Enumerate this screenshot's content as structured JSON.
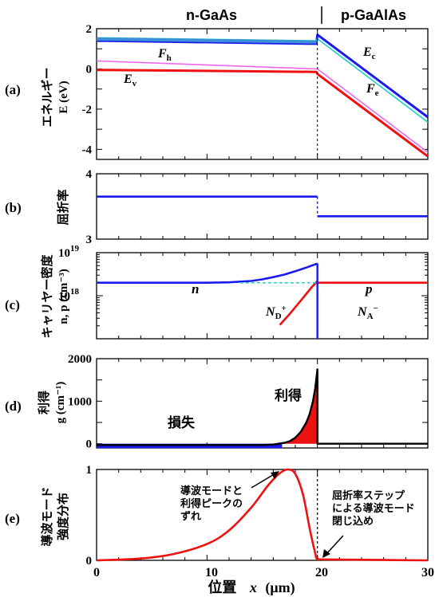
{
  "top_labels": {
    "left": "n-GaAs",
    "right": "p-GaAlAs"
  },
  "x_axis": {
    "label_text": "位置",
    "label_var": "x",
    "label_unit": "(μm)",
    "ticks": [
      "0",
      "10",
      "20",
      "30"
    ]
  },
  "chart_data": [
    {
      "panel": "(a)",
      "type": "line",
      "ylabel": "エネルギー",
      "ylabel2": "E (eV)",
      "xlim": [
        0,
        30
      ],
      "ylim": [
        -4.5,
        2
      ],
      "yticks": [
        "2",
        "0",
        "-2",
        "-4"
      ],
      "series": [
        {
          "name": "Ec",
          "color": "#1a1aee",
          "x": [
            0,
            19.9,
            20,
            30
          ],
          "y": [
            1.4,
            1.25,
            1.7,
            -2.4
          ]
        },
        {
          "name": "Fe",
          "color": "#22cccc",
          "x": [
            0,
            19.9,
            20,
            30
          ],
          "y": [
            1.55,
            1.4,
            1.5,
            -2.65
          ]
        },
        {
          "name": "Fh",
          "color": "#ee66ee",
          "x": [
            0,
            19.9,
            20,
            30
          ],
          "y": [
            0.4,
            0.0,
            0.0,
            -4.15
          ]
        },
        {
          "name": "Ev",
          "color": "#ee1111",
          "x": [
            0,
            19.9,
            20,
            30
          ],
          "y": [
            -0.05,
            -0.15,
            -0.25,
            -4.35
          ]
        }
      ],
      "labels": {
        "Fh_main": "F",
        "Fh_sub": "h",
        "Ev_main": "E",
        "Ev_sub": "v",
        "Ec_main": "E",
        "Ec_sub": "c",
        "Fe_main": "F",
        "Fe_sub": "e"
      }
    },
    {
      "panel": "(b)",
      "type": "line",
      "ylabel": "屈折率",
      "xlim": [
        0,
        30
      ],
      "ylim": [
        3,
        4
      ],
      "yticks": [
        "4",
        "3"
      ],
      "series": [
        {
          "name": "",
          "color": "#1a1aee",
          "x": [
            0,
            20,
            20,
            30
          ],
          "y": [
            3.65,
            3.65,
            3.35,
            3.35
          ]
        }
      ]
    },
    {
      "panel": "(c)",
      "type": "line",
      "scale": "log",
      "ylabel": "キャリヤー密度",
      "ylabel2": "n, p (cm⁻³)",
      "xlim": [
        0,
        30
      ],
      "ylim": [
        1e+17,
        1e+19
      ],
      "yticks": [
        {
          "base": "10",
          "exp": "19",
          "value": 1e+19
        },
        {
          "base": "10",
          "exp": "18",
          "value": 1e+18
        }
      ],
      "series": [
        {
          "name": "n",
          "color": "#1a1aee",
          "x": [
            0,
            10,
            12,
            14,
            15,
            16,
            17,
            18,
            19,
            20
          ],
          "y": [
            2e+18,
            2e+18,
            2.05e+18,
            2.2e+18,
            2.4e+18,
            2.7e+18,
            3.1e+18,
            3.7e+18,
            4.5e+18,
            5.6e+18
          ]
        },
        {
          "name": "p (n-side)",
          "color": "#ee1111",
          "x": [
            16.6,
            17.5,
            18.5,
            19.5,
            20
          ],
          "y": [
            2.1e+17,
            3.8e+17,
            7.7e+17,
            1.6e+18,
            2.2e+18
          ]
        },
        {
          "name": "p",
          "color": "#ee1111",
          "x": [
            20,
            30
          ],
          "y": [
            2e+18,
            2e+18
          ]
        },
        {
          "name": "ND+",
          "color": "#22cccc",
          "dashed": true,
          "x": [
            13,
            20
          ],
          "y": [
            2e+18,
            2e+18
          ]
        }
      ],
      "labels": {
        "n": "n",
        "p": "p",
        "ND_main": "N",
        "ND_sub": "D",
        "ND_sup": "+",
        "NA_main": "N",
        "NA_sub": "A",
        "NA_sup": "−"
      }
    },
    {
      "panel": "(d)",
      "type": "area",
      "ylabel": "利得",
      "ylabel2": "g (cm⁻¹)",
      "xlim": [
        0,
        30
      ],
      "ylim": [
        -100,
        2000
      ],
      "yticks": [
        "2000",
        "1000",
        "0"
      ],
      "series": [
        {
          "name": "g",
          "color": "#000000",
          "x": [
            0,
            15,
            16,
            17,
            17.5,
            18,
            18.5,
            19,
            19.3,
            19.6,
            19.8,
            20,
            20,
            30
          ],
          "y": [
            -30,
            -30,
            -20,
            20,
            60,
            140,
            280,
            500,
            700,
            1000,
            1300,
            1750,
            0,
            0
          ]
        }
      ],
      "fill": {
        "loss_color": "#1a1aee",
        "gain_color": "#ee1111"
      },
      "annotations": {
        "loss": "損失",
        "gain": "利得"
      }
    },
    {
      "panel": "(e)",
      "type": "line",
      "ylabel": "導波モード",
      "ylabel2": "強度分布",
      "xlim": [
        0,
        30
      ],
      "ylim": [
        0,
        1
      ],
      "yticks": [
        "1",
        "0"
      ],
      "series": [
        {
          "name": "mode",
          "color": "#ee1111",
          "x": [
            0,
            4,
            7,
            10,
            12,
            14,
            15.5,
            16.5,
            17.3,
            18,
            18.7,
            19.3,
            19.8,
            20,
            21,
            30
          ],
          "y": [
            0.0,
            0.02,
            0.07,
            0.18,
            0.33,
            0.58,
            0.82,
            0.95,
            1.0,
            0.95,
            0.72,
            0.35,
            0.08,
            0.02,
            0.01,
            0.0
          ]
        }
      ],
      "annotations": {
        "peak": [
          "導波モードと",
          "利得ピークの",
          "ずれ"
        ],
        "step": [
          "屈折率ステップ",
          "による導波モード",
          "閉じ込め"
        ]
      }
    }
  ]
}
